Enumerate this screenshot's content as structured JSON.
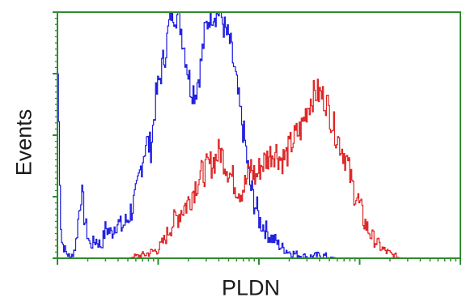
{
  "chart_data": {
    "type": "line",
    "title": "",
    "xlabel": "PLDN",
    "ylabel": "Events",
    "x_scale": "log",
    "xlim": [
      1,
      10000
    ],
    "ylim": [
      0,
      4
    ],
    "grid": false,
    "legend": "none",
    "axis_color": "#2e8b2e",
    "series": [
      {
        "color": "#1a1adf",
        "x": [
          1.0,
          1.08,
          1.2,
          1.35,
          1.5,
          1.7,
          1.9,
          2.1,
          2.4,
          2.7,
          3.0,
          3.4,
          3.8,
          4.3,
          4.8,
          5.4,
          6.0,
          6.7,
          7.5,
          8.4,
          9.4,
          10.5,
          11.8,
          13.2,
          14.8,
          16.5,
          18.5,
          20.7,
          23.2,
          26,
          29,
          32.5,
          36.4,
          40.8,
          45.7,
          51.2,
          57.3,
          64.2,
          71.9,
          80.5,
          90.2,
          101,
          113,
          127,
          142,
          159,
          178,
          200,
          250,
          300,
          400,
          600,
          1000,
          3000,
          10000
        ],
        "y": [
          3.0,
          0.3,
          0.1,
          0.0,
          0.2,
          1.1,
          0.5,
          0.2,
          0.3,
          0.2,
          0.5,
          0.4,
          0.6,
          0.5,
          0.6,
          0.8,
          1.0,
          1.5,
          1.9,
          1.8,
          2.6,
          3.0,
          3.4,
          4.0,
          4.0,
          3.8,
          3.3,
          2.8,
          2.7,
          3.1,
          3.7,
          4.0,
          4.0,
          4.0,
          3.7,
          3.5,
          3.0,
          2.4,
          1.9,
          1.2,
          0.9,
          0.6,
          0.5,
          0.35,
          0.3,
          0.2,
          0.15,
          0.1,
          0.05,
          0.02,
          0.05,
          0.0,
          0.0,
          0.0,
          0.0
        ]
      },
      {
        "color": "#dd2222",
        "x": [
          1.0,
          5,
          7,
          8.5,
          10,
          11.5,
          13,
          15,
          17,
          19.5,
          22,
          25,
          28,
          32,
          36,
          41,
          46,
          52,
          58,
          65,
          73,
          82,
          92,
          103,
          116,
          130,
          146,
          164,
          184,
          206,
          232,
          260,
          292,
          328,
          368,
          413,
          464,
          521,
          585,
          657,
          737,
          828,
          930,
          1044,
          1172,
          1316,
          1478,
          1659,
          1863,
          2092,
          2500,
          3000,
          5000,
          10000
        ],
        "y": [
          0.0,
          0.0,
          0.05,
          0.1,
          0.15,
          0.3,
          0.5,
          0.65,
          0.8,
          0.9,
          1.1,
          1.3,
          1.4,
          1.5,
          1.6,
          1.75,
          1.55,
          1.35,
          1.2,
          1.1,
          1.2,
          1.5,
          1.3,
          1.5,
          1.6,
          1.7,
          1.75,
          1.6,
          1.65,
          1.85,
          2.0,
          2.1,
          2.4,
          2.6,
          2.7,
          2.65,
          2.55,
          2.25,
          2.0,
          1.8,
          1.6,
          1.2,
          1.0,
          0.7,
          0.5,
          0.35,
          0.25,
          0.15,
          0.1,
          0.05,
          0.0,
          0.0,
          0.0,
          0.0
        ]
      }
    ]
  }
}
